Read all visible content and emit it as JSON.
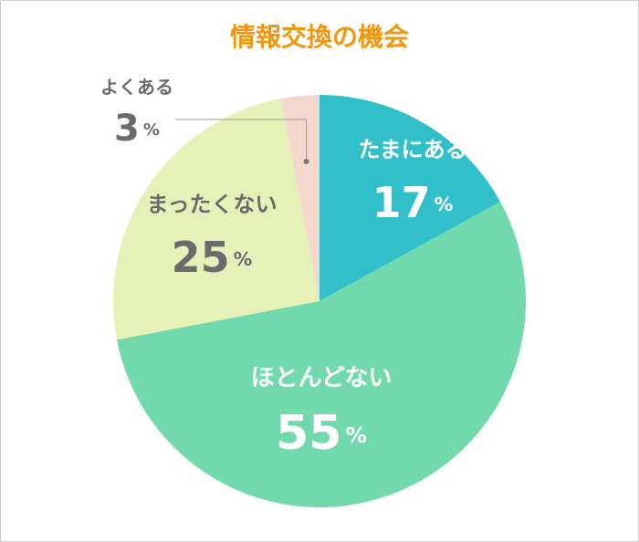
{
  "chart_data": {
    "type": "pie",
    "title": "情報交換の機会",
    "categories": [
      "たまにある",
      "ほとんどない",
      "まったくない",
      "よくある"
    ],
    "values": [
      17,
      55,
      25,
      3
    ],
    "value_labels": [
      "17%",
      "55%",
      "25%",
      "3%"
    ],
    "colors": [
      "#31bfc9",
      "#72d9ad",
      "#e6f1b8",
      "#f4d7cd"
    ]
  }
}
